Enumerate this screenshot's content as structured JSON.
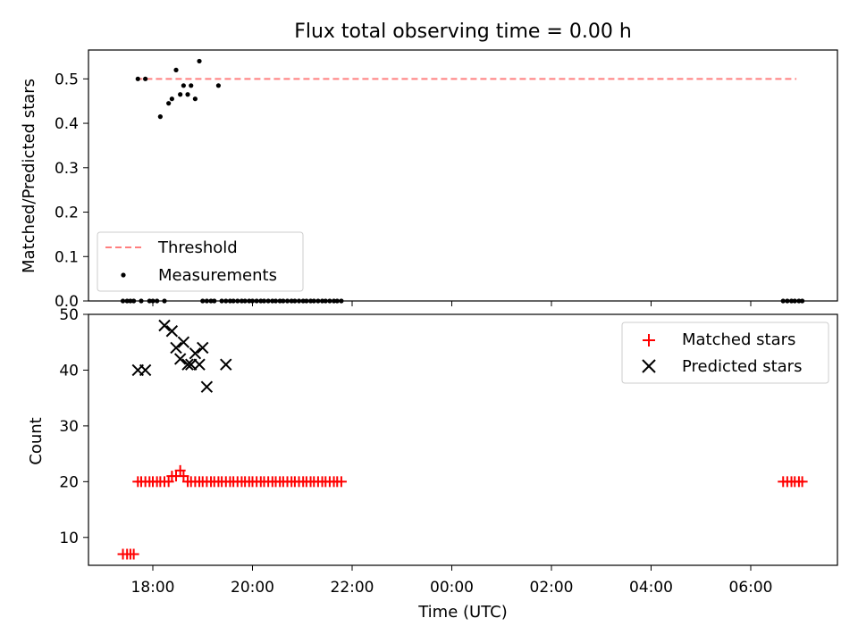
{
  "title": "Flux total observing time = 0.00 h",
  "colors": {
    "threshold": "#ff7f7f",
    "measurement": "#000000",
    "matched": "#ff0000",
    "predicted": "#000000"
  },
  "chart_data": [
    {
      "type": "scatter",
      "ylabel": "Matched/Predicted stars",
      "ylim": [
        0,
        0.565
      ],
      "yticks": [
        0.0,
        0.1,
        0.2,
        0.3,
        0.4,
        0.5
      ],
      "ytick_labels": [
        "0.0",
        "0.1",
        "0.2",
        "0.3",
        "0.4",
        "0.5"
      ],
      "legend": {
        "placement": "lower-left",
        "entries": [
          "Threshold",
          "Measurements"
        ]
      },
      "series": [
        {
          "name": "Threshold",
          "kind": "dashed-line",
          "x": [
            "17:40",
            "06:55"
          ],
          "y": [
            0.5,
            0.5
          ]
        },
        {
          "name": "Measurements",
          "kind": "points",
          "x": [
            "17:24",
            "17:29",
            "17:33",
            "17:37",
            "17:42",
            "17:46",
            "17:51",
            "17:56",
            "18:00",
            "18:05",
            "18:09",
            "18:14",
            "18:19",
            "18:23",
            "18:28",
            "18:33",
            "18:37",
            "18:42",
            "18:46",
            "18:51",
            "18:56",
            "19:00",
            "19:05",
            "19:10",
            "19:14",
            "19:19",
            "19:23",
            "19:28",
            "19:33",
            "19:37",
            "19:42",
            "19:47",
            "19:51",
            "19:56",
            "20:00",
            "20:05",
            "20:10",
            "20:14",
            "20:19",
            "20:24",
            "20:28",
            "20:33",
            "20:37",
            "20:42",
            "20:47",
            "20:51",
            "20:56",
            "21:01",
            "21:05",
            "21:10",
            "21:14",
            "21:19",
            "21:24",
            "21:28",
            "21:33",
            "21:38",
            "21:42",
            "21:47",
            "06:39",
            "06:44",
            "06:49",
            "06:53",
            "06:58",
            "07:02"
          ],
          "y": [
            0,
            0,
            0,
            0,
            0.5,
            0,
            0.5,
            0,
            0,
            0,
            0.415,
            0,
            0.445,
            0.455,
            0.52,
            0.465,
            0.485,
            0.465,
            0.485,
            0.455,
            0.54,
            0,
            0,
            0,
            0,
            0.485,
            0,
            0,
            0,
            0,
            0,
            0,
            0,
            0,
            0,
            0,
            0,
            0,
            0,
            0,
            0,
            0,
            0,
            0,
            0,
            0,
            0,
            0,
            0,
            0,
            0,
            0,
            0,
            0,
            0,
            0,
            0,
            0,
            0,
            0,
            0,
            0,
            0,
            0
          ]
        }
      ]
    },
    {
      "type": "scatter",
      "ylabel": "Count",
      "xlabel": "Time (UTC)",
      "ylim": [
        5,
        50
      ],
      "yticks": [
        10,
        20,
        30,
        40,
        50
      ],
      "ytick_labels": [
        "10",
        "20",
        "30",
        "40",
        "50"
      ],
      "xticks": [
        "18:00",
        "20:00",
        "22:00",
        "00:00",
        "02:00",
        "04:00",
        "06:00"
      ],
      "legend": {
        "placement": "top-right",
        "entries": [
          "Matched stars",
          "Predicted stars"
        ]
      },
      "series": [
        {
          "name": "Matched stars",
          "marker": "plus",
          "x": [
            "17:24",
            "17:29",
            "17:33",
            "17:37",
            "17:42",
            "17:46",
            "17:51",
            "17:56",
            "18:00",
            "18:05",
            "18:09",
            "18:14",
            "18:19",
            "18:23",
            "18:28",
            "18:33",
            "18:37",
            "18:42",
            "18:46",
            "18:51",
            "18:56",
            "19:00",
            "19:05",
            "19:10",
            "19:14",
            "19:19",
            "19:23",
            "19:28",
            "19:33",
            "19:37",
            "19:42",
            "19:47",
            "19:51",
            "19:56",
            "20:00",
            "20:05",
            "20:10",
            "20:14",
            "20:19",
            "20:24",
            "20:28",
            "20:33",
            "20:37",
            "20:42",
            "20:47",
            "20:51",
            "20:56",
            "21:01",
            "21:05",
            "21:10",
            "21:14",
            "21:19",
            "21:24",
            "21:28",
            "21:33",
            "21:38",
            "21:42",
            "21:47",
            "06:39",
            "06:44",
            "06:49",
            "06:53",
            "06:58",
            "07:02"
          ],
          "y": [
            7,
            7,
            7,
            7,
            20,
            20,
            20,
            20,
            20,
            20,
            20,
            20,
            20,
            21,
            21,
            22,
            21,
            20,
            20,
            20,
            20,
            20,
            20,
            20,
            20,
            20,
            20,
            20,
            20,
            20,
            20,
            20,
            20,
            20,
            20,
            20,
            20,
            20,
            20,
            20,
            20,
            20,
            20,
            20,
            20,
            20,
            20,
            20,
            20,
            20,
            20,
            20,
            20,
            20,
            20,
            20,
            20,
            20,
            20,
            20,
            20,
            20,
            20,
            20
          ]
        },
        {
          "name": "Predicted stars",
          "marker": "x",
          "x": [
            "17:42",
            "17:51",
            "18:14",
            "18:23",
            "18:28",
            "18:33",
            "18:37",
            "18:42",
            "18:46",
            "18:51",
            "18:56",
            "19:00",
            "19:05",
            "19:28"
          ],
          "y": [
            40,
            40,
            48,
            47,
            44,
            42,
            45,
            41,
            41,
            43,
            41,
            44,
            37,
            41
          ]
        }
      ]
    }
  ]
}
